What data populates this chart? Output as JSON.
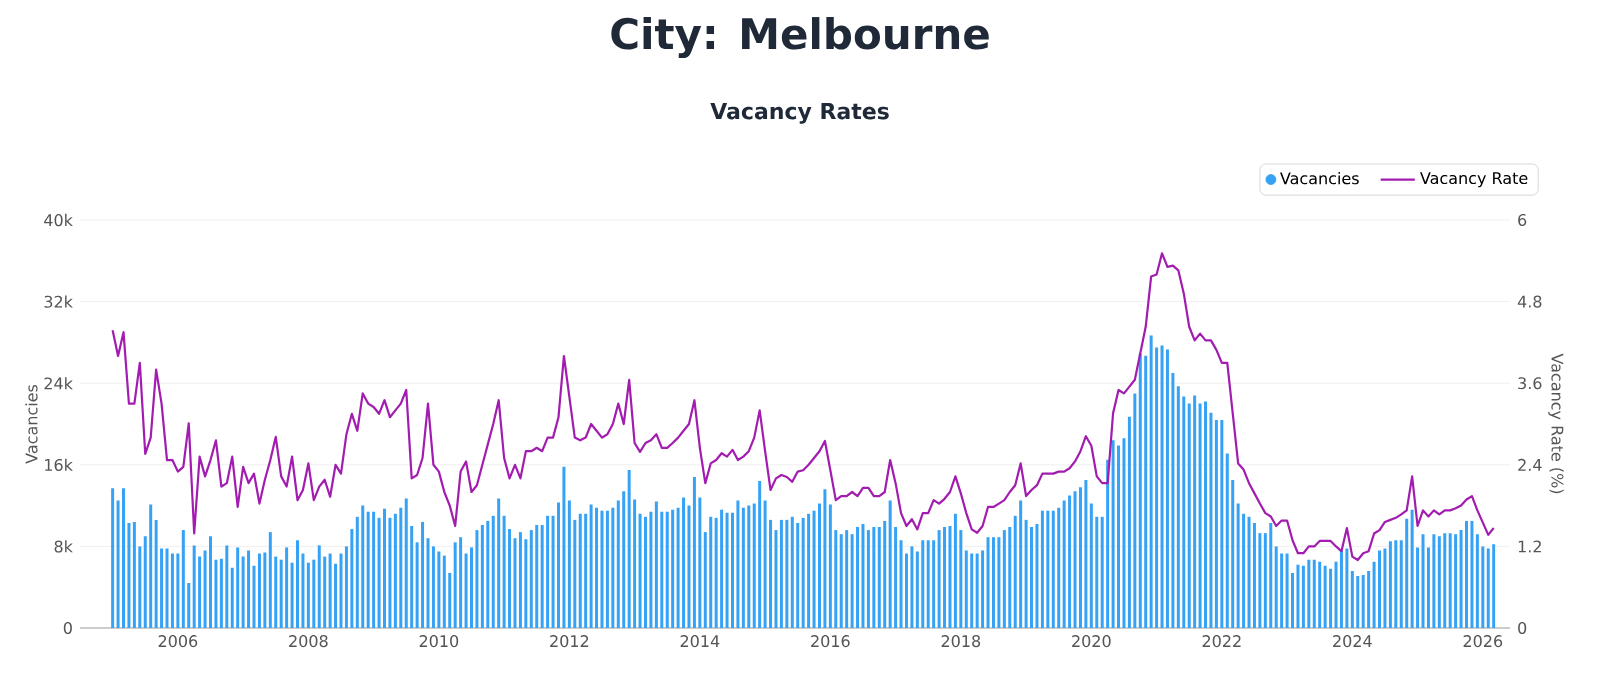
{
  "chart_data": {
    "type": "bar",
    "title": "City: Melbourne",
    "subtitle": "Vacancy Rates",
    "ylabel": "Vacancies",
    "y2label": "Vacancy Rate (%)",
    "x": [
      "2005-01",
      "2005-02",
      "2005-03",
      "2005-04",
      "2005-05",
      "2005-06",
      "2005-07",
      "2005-08",
      "2005-09",
      "2005-10",
      "2005-11",
      "2005-12",
      "2006-01",
      "2006-02",
      "2006-03",
      "2006-04",
      "2006-05",
      "2006-06",
      "2006-07",
      "2006-08",
      "2006-09",
      "2006-10",
      "2006-11",
      "2006-12",
      "2007-01",
      "2007-02",
      "2007-03",
      "2007-04",
      "2007-05",
      "2007-06",
      "2007-07",
      "2007-08",
      "2007-09",
      "2007-10",
      "2007-11",
      "2007-12",
      "2008-01",
      "2008-02",
      "2008-03",
      "2008-04",
      "2008-05",
      "2008-06",
      "2008-07",
      "2008-08",
      "2008-09",
      "2008-10",
      "2008-11",
      "2008-12",
      "2009-01",
      "2009-02",
      "2009-03",
      "2009-04",
      "2009-05",
      "2009-06",
      "2009-07",
      "2009-08",
      "2009-09",
      "2009-10",
      "2009-11",
      "2009-12",
      "2010-01",
      "2010-02",
      "2010-03",
      "2010-04",
      "2010-05",
      "2010-06",
      "2010-07",
      "2010-08",
      "2010-09",
      "2010-10",
      "2010-11",
      "2010-12",
      "2011-01",
      "2011-02",
      "2011-03",
      "2011-04",
      "2011-05",
      "2011-06",
      "2011-07",
      "2011-08",
      "2011-09",
      "2011-10",
      "2011-11",
      "2011-12",
      "2012-01",
      "2012-02",
      "2012-03",
      "2012-04",
      "2012-05",
      "2012-06",
      "2012-07",
      "2012-08",
      "2012-09",
      "2012-10",
      "2012-11",
      "2012-12",
      "2013-01",
      "2013-02",
      "2013-03",
      "2013-04",
      "2013-05",
      "2013-06",
      "2013-07",
      "2013-08",
      "2013-09",
      "2013-10",
      "2013-11",
      "2013-12",
      "2014-01",
      "2014-02",
      "2014-03",
      "2014-04",
      "2014-05",
      "2014-06",
      "2014-07",
      "2014-08",
      "2014-09",
      "2014-10",
      "2014-11",
      "2014-12",
      "2015-01",
      "2015-02",
      "2015-03",
      "2015-04",
      "2015-05",
      "2015-06",
      "2015-07",
      "2015-08",
      "2015-09",
      "2015-10",
      "2015-11",
      "2015-12",
      "2016-01",
      "2016-02",
      "2016-03",
      "2016-04",
      "2016-05",
      "2016-06",
      "2016-07",
      "2016-08",
      "2016-09",
      "2016-10",
      "2016-11",
      "2016-12",
      "2017-01",
      "2017-02",
      "2017-03",
      "2017-04",
      "2017-05",
      "2017-06",
      "2017-07",
      "2017-08",
      "2017-09",
      "2017-10",
      "2017-11",
      "2017-12",
      "2018-01",
      "2018-02",
      "2018-03",
      "2018-04",
      "2018-05",
      "2018-06",
      "2018-07",
      "2018-08",
      "2018-09",
      "2018-10",
      "2018-11",
      "2018-12",
      "2019-01",
      "2019-02",
      "2019-03",
      "2019-04",
      "2019-05",
      "2019-06",
      "2019-07",
      "2019-08",
      "2019-09",
      "2019-10",
      "2019-11",
      "2019-12",
      "2020-01",
      "2020-02",
      "2020-03",
      "2020-04",
      "2020-05",
      "2020-06",
      "2020-07",
      "2020-08",
      "2020-09",
      "2020-10",
      "2020-11",
      "2020-12",
      "2021-01",
      "2021-02",
      "2021-03",
      "2021-04",
      "2021-05",
      "2021-06",
      "2021-07",
      "2021-08",
      "2021-09",
      "2021-10",
      "2021-11",
      "2021-12",
      "2022-01",
      "2022-02",
      "2022-03",
      "2022-04",
      "2022-05",
      "2022-06",
      "2022-07",
      "2022-08",
      "2022-09",
      "2022-10",
      "2022-11",
      "2022-12",
      "2023-01",
      "2023-02",
      "2023-03",
      "2023-04",
      "2023-05",
      "2023-06",
      "2023-07",
      "2023-08",
      "2023-09",
      "2023-10",
      "2023-11",
      "2023-12",
      "2024-01",
      "2024-02",
      "2024-03",
      "2024-04",
      "2024-05",
      "2024-06",
      "2024-07",
      "2024-08",
      "2024-09",
      "2024-10",
      "2024-11",
      "2024-12",
      "2025-01",
      "2025-02",
      "2025-03",
      "2025-04",
      "2025-05",
      "2025-06",
      "2025-07",
      "2025-08",
      "2025-09",
      "2025-10",
      "2025-11",
      "2025-12",
      "2026-01",
      "2026-02",
      "2026-03"
    ],
    "series": [
      {
        "name": "Vacancies",
        "color": "#36a2f5",
        "values": [
          13700,
          12500,
          13700,
          10300,
          10400,
          8000,
          9000,
          12100,
          10600,
          7800,
          7800,
          7300,
          7300,
          9600,
          4400,
          8100,
          7000,
          7600,
          9000,
          6700,
          6800,
          8100,
          5900,
          7900,
          7000,
          7600,
          6100,
          7300,
          7400,
          9400,
          7000,
          6700,
          7900,
          6400,
          8600,
          7300,
          6400,
          6700,
          8100,
          7000,
          7300,
          6300,
          7300,
          8000,
          9700,
          10900,
          12000,
          11400,
          11400,
          10800,
          11700,
          10800,
          11200,
          11800,
          12700,
          10000,
          8400,
          10400,
          8800,
          8000,
          7500,
          7100,
          5400,
          8400,
          8900,
          7300,
          7900,
          9600,
          10100,
          10500,
          11000,
          12700,
          11000,
          9700,
          8800,
          9400,
          8700,
          9600,
          10100,
          10100,
          11000,
          11000,
          12300,
          15800,
          12500,
          10600,
          11200,
          11200,
          12100,
          11800,
          11500,
          11500,
          11800,
          12500,
          13400,
          15500,
          12600,
          11200,
          10900,
          11400,
          12400,
          11400,
          11400,
          11600,
          11800,
          12800,
          12000,
          14800,
          12800,
          9400,
          10900,
          10800,
          11600,
          11300,
          11300,
          12500,
          11800,
          12000,
          12200,
          14400,
          12500,
          10600,
          9600,
          10600,
          10600,
          10900,
          10300,
          10800,
          11200,
          11500,
          12200,
          13600,
          12100,
          9600,
          9200,
          9600,
          9200,
          9900,
          10200,
          9600,
          9900,
          9900,
          10500,
          12500,
          9900,
          8600,
          7300,
          8000,
          7500,
          8600,
          8600,
          8600,
          9600,
          9900,
          10000,
          11200,
          9600,
          7600,
          7300,
          7300,
          7600,
          8900,
          8900,
          8900,
          9600,
          9900,
          11000,
          12500,
          10600,
          9900,
          10200,
          11500,
          11500,
          11500,
          11800,
          12500,
          13000,
          13400,
          13800,
          14500,
          12200,
          10900,
          10900,
          16500,
          18400,
          17900,
          18600,
          20700,
          23000,
          26900,
          26700,
          28700,
          27500,
          27700,
          27300,
          25000,
          23700,
          22700,
          22000,
          22800,
          22000,
          22200,
          21100,
          20400,
          20400,
          17100,
          14500,
          12200,
          11200,
          10900,
          10300,
          9300,
          9300,
          10300,
          8000,
          7300,
          7300,
          5400,
          6200,
          6100,
          6700,
          6700,
          6500,
          6100,
          5800,
          6500,
          7600,
          7800,
          5600,
          5100,
          5200,
          5600,
          6500,
          7600,
          7800,
          8500,
          8600,
          8600,
          10700,
          11600,
          7900,
          9200,
          7900,
          9200,
          9000,
          9300,
          9300,
          9200,
          9600,
          10500,
          10500,
          9200,
          8000,
          7800,
          8200
        ]
      },
      {
        "name": "Vacancy Rate",
        "type": "line",
        "axis": "y2",
        "color": "#a21caf",
        "values": [
          4.38,
          4.0,
          4.35,
          3.3,
          3.3,
          3.9,
          2.56,
          2.8,
          3.8,
          3.3,
          2.47,
          2.47,
          2.3,
          2.37,
          3.01,
          1.39,
          2.52,
          2.23,
          2.47,
          2.76,
          2.08,
          2.13,
          2.52,
          1.78,
          2.37,
          2.13,
          2.27,
          1.83,
          2.18,
          2.47,
          2.81,
          2.23,
          2.08,
          2.52,
          1.88,
          2.03,
          2.42,
          1.88,
          2.08,
          2.18,
          1.93,
          2.4,
          2.27,
          2.85,
          3.15,
          2.9,
          3.45,
          3.3,
          3.25,
          3.15,
          3.35,
          3.1,
          3.2,
          3.3,
          3.5,
          2.2,
          2.25,
          2.5,
          3.3,
          2.4,
          2.3,
          2.0,
          1.8,
          1.5,
          2.3,
          2.45,
          2.0,
          2.1,
          2.4,
          2.7,
          3.0,
          3.35,
          2.5,
          2.2,
          2.4,
          2.2,
          2.6,
          2.6,
          2.65,
          2.6,
          2.8,
          2.8,
          3.1,
          4.0,
          3.4,
          2.8,
          2.76,
          2.8,
          3.0,
          2.9,
          2.8,
          2.85,
          3.0,
          3.3,
          3.0,
          3.65,
          2.72,
          2.59,
          2.72,
          2.76,
          2.85,
          2.65,
          2.65,
          2.72,
          2.8,
          2.9,
          3.0,
          3.35,
          2.65,
          2.13,
          2.42,
          2.47,
          2.57,
          2.52,
          2.62,
          2.47,
          2.52,
          2.6,
          2.8,
          3.2,
          2.6,
          2.03,
          2.2,
          2.25,
          2.22,
          2.15,
          2.3,
          2.32,
          2.4,
          2.5,
          2.6,
          2.75,
          2.32,
          1.88,
          1.94,
          1.94,
          2.0,
          1.94,
          2.06,
          2.06,
          1.94,
          1.94,
          2.0,
          2.47,
          2.13,
          1.69,
          1.5,
          1.6,
          1.45,
          1.69,
          1.69,
          1.88,
          1.83,
          1.9,
          2.0,
          2.23,
          1.98,
          1.69,
          1.45,
          1.4,
          1.5,
          1.78,
          1.78,
          1.83,
          1.88,
          2.0,
          2.1,
          2.42,
          1.94,
          2.03,
          2.1,
          2.27,
          2.27,
          2.27,
          2.3,
          2.3,
          2.35,
          2.45,
          2.6,
          2.82,
          2.68,
          2.23,
          2.13,
          2.13,
          3.16,
          3.5,
          3.45,
          3.55,
          3.65,
          4.04,
          4.43,
          5.17,
          5.2,
          5.51,
          5.31,
          5.33,
          5.26,
          4.92,
          4.43,
          4.23,
          4.33,
          4.23,
          4.23,
          4.09,
          3.9,
          3.9,
          3.16,
          2.42,
          2.33,
          2.13,
          1.98,
          1.83,
          1.69,
          1.64,
          1.5,
          1.58,
          1.58,
          1.29,
          1.1,
          1.1,
          1.2,
          1.2,
          1.28,
          1.28,
          1.28,
          1.2,
          1.13,
          1.47,
          1.05,
          1.0,
          1.1,
          1.13,
          1.39,
          1.44,
          1.56,
          1.59,
          1.62,
          1.67,
          1.73,
          2.23,
          1.5,
          1.73,
          1.64,
          1.73,
          1.67,
          1.73,
          1.73,
          1.76,
          1.8,
          1.89,
          1.94,
          1.73,
          1.55,
          1.37,
          1.47
        ]
      }
    ],
    "xlim": [
      "2004-07",
      "2026-06"
    ],
    "xticks": [
      "2006",
      "2008",
      "2010",
      "2012",
      "2014",
      "2016",
      "2018",
      "2020",
      "2022",
      "2024",
      "2026"
    ],
    "ylim": [
      0,
      40000
    ],
    "yticks": [
      0,
      {
        "value": 8000,
        "label": "8k"
      },
      {
        "value": 16000,
        "label": "16k"
      },
      {
        "value": 24000,
        "label": "24k"
      },
      {
        "value": 32000,
        "label": "32k"
      },
      {
        "value": 40000,
        "label": "40k"
      }
    ],
    "y2lim": [
      0,
      6
    ],
    "y2ticks": [
      0,
      1.2,
      2.4,
      3.6,
      4.8,
      6
    ],
    "grid": "y",
    "legend": "top right"
  }
}
